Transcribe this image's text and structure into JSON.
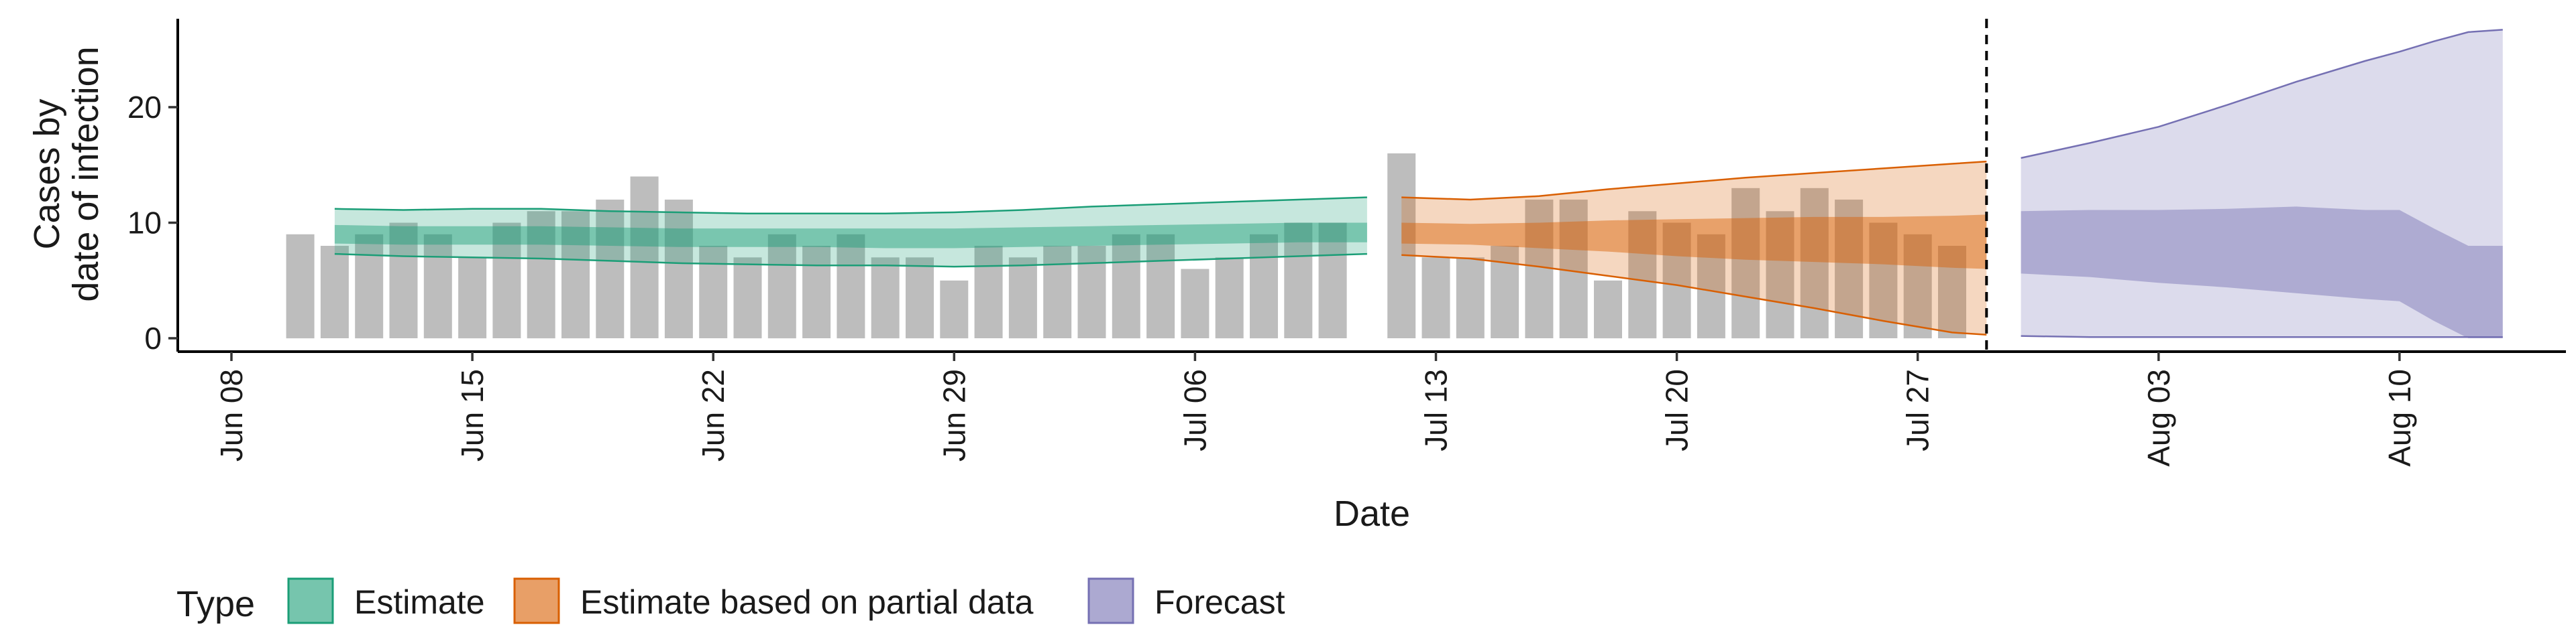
{
  "chart_data": {
    "type": "bar",
    "xlabel": "Date",
    "ylabel": [
      "Cases by",
      "date of infection"
    ],
    "ylim": [
      0,
      27
    ],
    "x_ticks": [
      {
        "date": "2020-06-08",
        "label": "Jun 08"
      },
      {
        "date": "2020-06-15",
        "label": "Jun 15"
      },
      {
        "date": "2020-06-22",
        "label": "Jun 22"
      },
      {
        "date": "2020-06-29",
        "label": "Jun 29"
      },
      {
        "date": "2020-07-06",
        "label": "Jul 06"
      },
      {
        "date": "2020-07-13",
        "label": "Jul 13"
      },
      {
        "date": "2020-07-20",
        "label": "Jul 20"
      },
      {
        "date": "2020-07-27",
        "label": "Jul 27"
      },
      {
        "date": "2020-08-03",
        "label": "Aug 03"
      },
      {
        "date": "2020-08-10",
        "label": "Aug 10"
      }
    ],
    "y_ticks": [
      0,
      10,
      20
    ],
    "vline_date": "2020-07-29",
    "legend": {
      "title": "Type",
      "position": "bottom",
      "items": [
        {
          "label": "Estimate",
          "color": "#1b9e77"
        },
        {
          "label": "Estimate based on partial data",
          "color": "#d95f02"
        },
        {
          "label": "Forecast",
          "color": "#7570b3"
        }
      ]
    },
    "bars": {
      "color": "#bdbdbd",
      "dates": [
        "2020-06-10",
        "2020-06-11",
        "2020-06-12",
        "2020-06-13",
        "2020-06-14",
        "2020-06-15",
        "2020-06-16",
        "2020-06-17",
        "2020-06-18",
        "2020-06-19",
        "2020-06-20",
        "2020-06-21",
        "2020-06-22",
        "2020-06-23",
        "2020-06-24",
        "2020-06-25",
        "2020-06-26",
        "2020-06-27",
        "2020-06-28",
        "2020-06-29",
        "2020-06-30",
        "2020-07-01",
        "2020-07-02",
        "2020-07-03",
        "2020-07-04",
        "2020-07-05",
        "2020-07-06",
        "2020-07-07",
        "2020-07-08",
        "2020-07-09",
        "2020-07-10",
        "2020-07-11",
        "2020-07-12",
        "2020-07-13",
        "2020-07-14",
        "2020-07-15",
        "2020-07-16",
        "2020-07-17",
        "2020-07-18",
        "2020-07-19",
        "2020-07-20",
        "2020-07-21",
        "2020-07-22",
        "2020-07-23",
        "2020-07-24",
        "2020-07-25",
        "2020-07-26",
        "2020-07-27",
        "2020-07-28"
      ],
      "values": [
        9,
        8,
        9,
        10,
        9,
        7,
        10,
        11,
        11,
        12,
        14,
        12,
        8,
        7,
        9,
        8,
        9,
        7,
        7,
        5,
        8,
        7,
        8,
        8,
        9,
        9,
        6,
        7,
        9,
        10,
        10,
        null,
        16,
        7,
        7,
        8,
        12,
        12,
        5,
        11,
        10,
        9,
        13,
        11,
        13,
        12,
        10,
        9,
        8
      ]
    },
    "series": [
      {
        "name": "Estimate",
        "color": "#1b9e77",
        "x": [
          "2020-06-11",
          "2020-06-13",
          "2020-06-15",
          "2020-06-17",
          "2020-06-19",
          "2020-06-21",
          "2020-06-23",
          "2020-06-25",
          "2020-06-27",
          "2020-06-29",
          "2020-07-01",
          "2020-07-03",
          "2020-07-05",
          "2020-07-07",
          "2020-07-09",
          "2020-07-11"
        ],
        "upper90": [
          11.2,
          11.1,
          11.2,
          11.2,
          11.0,
          10.9,
          10.8,
          10.8,
          10.8,
          10.9,
          11.1,
          11.4,
          11.6,
          11.8,
          12.0,
          12.2
        ],
        "upper50": [
          9.8,
          9.7,
          9.7,
          9.7,
          9.6,
          9.5,
          9.5,
          9.5,
          9.5,
          9.5,
          9.6,
          9.7,
          9.8,
          9.9,
          10.0,
          10.0
        ],
        "lower50": [
          8.2,
          8.1,
          8.1,
          8.1,
          8.0,
          7.9,
          7.9,
          7.9,
          7.8,
          7.8,
          7.9,
          8.0,
          8.1,
          8.2,
          8.3,
          8.3
        ],
        "lower90": [
          7.3,
          7.1,
          7.0,
          6.9,
          6.7,
          6.5,
          6.4,
          6.3,
          6.3,
          6.2,
          6.3,
          6.5,
          6.7,
          6.9,
          7.1,
          7.3
        ]
      },
      {
        "name": "Estimate based on partial data",
        "color": "#d95f02",
        "x": [
          "2020-07-12",
          "2020-07-14",
          "2020-07-16",
          "2020-07-18",
          "2020-07-20",
          "2020-07-22",
          "2020-07-24",
          "2020-07-26",
          "2020-07-28",
          "2020-07-29"
        ],
        "upper90": [
          12.2,
          12.0,
          12.3,
          12.9,
          13.4,
          13.9,
          14.3,
          14.7,
          15.1,
          15.3
        ],
        "upper50": [
          10.0,
          9.9,
          10.0,
          10.2,
          10.3,
          10.4,
          10.5,
          10.5,
          10.6,
          10.7
        ],
        "lower50": [
          8.2,
          8.1,
          7.8,
          7.5,
          7.1,
          6.8,
          6.6,
          6.4,
          6.1,
          6.0
        ],
        "lower90": [
          7.2,
          6.9,
          6.2,
          5.4,
          4.6,
          3.6,
          2.6,
          1.5,
          0.5,
          0.3
        ]
      },
      {
        "name": "Forecast",
        "color": "#7570b3",
        "x": [
          "2020-07-30",
          "2020-08-01",
          "2020-08-03",
          "2020-08-05",
          "2020-08-07",
          "2020-08-09",
          "2020-08-10",
          "2020-08-11",
          "2020-08-12",
          "2020-08-13"
        ],
        "upper90": [
          15.6,
          16.9,
          18.3,
          20.2,
          22.2,
          24.0,
          24.8,
          25.7,
          26.5,
          26.7
        ],
        "upper50": [
          11.0,
          11.1,
          11.1,
          11.2,
          11.4,
          11.1,
          11.1,
          9.5,
          8.0,
          8.0
        ],
        "lower50": [
          5.6,
          5.3,
          4.8,
          4.4,
          3.9,
          3.4,
          3.2,
          1.5,
          0,
          0
        ],
        "lower90": [
          0.2,
          0.1,
          0.1,
          0.1,
          0.1,
          0.1,
          0.1,
          0.1,
          0.1,
          0.1
        ]
      }
    ]
  }
}
